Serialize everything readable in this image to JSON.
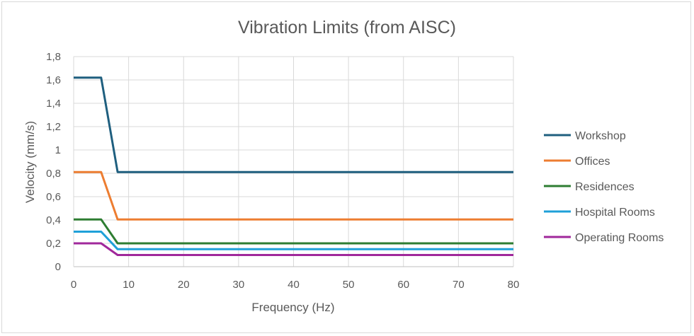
{
  "chart_data": {
    "type": "line",
    "title": "Vibration Limits (from AISC)",
    "xlabel": "Frequency (Hz)",
    "ylabel": "Velocity (mm/s)",
    "xlim": [
      0,
      80
    ],
    "ylim": [
      0,
      1.8
    ],
    "x_ticks": [
      0,
      10,
      20,
      30,
      40,
      50,
      60,
      70,
      80
    ],
    "y_ticks": [
      0,
      0.2,
      0.4,
      0.6,
      0.8,
      1.0,
      1.2,
      1.4,
      1.6,
      1.8
    ],
    "y_tick_labels": [
      "0",
      "0,2",
      "0,4",
      "0,6",
      "0,8",
      "1",
      "1,2",
      "1,4",
      "1,6",
      "1,8"
    ],
    "grid": true,
    "legend_position": "right",
    "series": [
      {
        "name": "Workshop",
        "color": "#1f5f7f",
        "x": [
          0,
          5,
          8,
          80
        ],
        "y": [
          1.62,
          1.62,
          0.81,
          0.81
        ]
      },
      {
        "name": "Offices",
        "color": "#ed7d31",
        "x": [
          0,
          5,
          8,
          80
        ],
        "y": [
          0.81,
          0.81,
          0.405,
          0.405
        ]
      },
      {
        "name": "Residences",
        "color": "#2e7d32",
        "x": [
          0,
          5,
          8,
          80
        ],
        "y": [
          0.405,
          0.405,
          0.2,
          0.2
        ]
      },
      {
        "name": "Hospital Rooms",
        "color": "#1fa0d8",
        "x": [
          0,
          5,
          8,
          80
        ],
        "y": [
          0.3,
          0.3,
          0.15,
          0.15
        ]
      },
      {
        "name": "Operating Rooms",
        "color": "#a0289b",
        "x": [
          0,
          5,
          8,
          80
        ],
        "y": [
          0.2,
          0.2,
          0.1,
          0.1
        ]
      }
    ]
  }
}
